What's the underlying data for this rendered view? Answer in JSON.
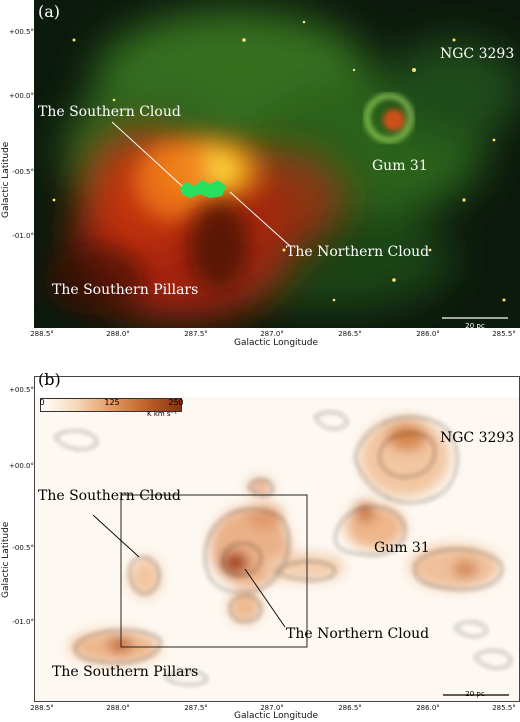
{
  "panel_a": {
    "label": "(a)",
    "annotations": {
      "ngc": "NGC 3293",
      "southern_cloud": "The Southern Cloud",
      "gum": "Gum 31",
      "northern_cloud": "The Northern Cloud",
      "southern_pillars": "The Southern Pillars"
    },
    "y_ticks": [
      "+00.5°",
      "+00.0°",
      "-00.5°",
      "-01.0°"
    ],
    "x_ticks": [
      "288.5°",
      "288.0°",
      "287.5°",
      "287.0°",
      "286.5°",
      "286.0°",
      "285.5°"
    ],
    "x_title": "Galactic Longitude",
    "y_title": "Galactic Latitude",
    "scale": "20 pc"
  },
  "panel_b": {
    "label": "(b)",
    "colorbar": {
      "unit": "K km s⁻¹",
      "ticks": [
        "0",
        "125",
        "250"
      ]
    },
    "annotations": {
      "ngc": "NGC 3293",
      "southern_cloud": "The Southern Cloud",
      "gum": "Gum 31",
      "northern_cloud": "The Northern Cloud",
      "southern_pillars": "The Southern Pillars"
    },
    "y_ticks": [
      "+00.5°",
      "+00.0°",
      "-00.5°",
      "-01.0°"
    ],
    "x_ticks": [
      "288.5°",
      "288.0°",
      "287.5°",
      "287.0°",
      "286.5°",
      "286.0°",
      "285.5°"
    ],
    "x_title": "Galactic Longitude",
    "y_title": "Galactic Latitude",
    "scale": "20 pc"
  }
}
